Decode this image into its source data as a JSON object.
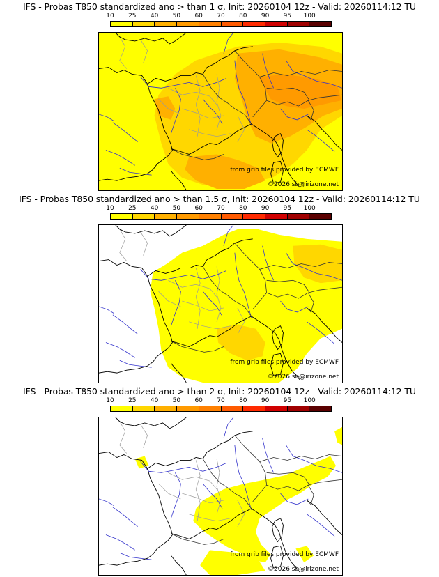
{
  "panels": [
    {
      "title": "IFS - Probas T850  standardized ano > than 1 σ, Init: 20260104 12z - Valid: 20260114:12 TU",
      "scenario": "p1"
    },
    {
      "title": "IFS - Probas T850  standardized ano > than 1.5 σ, Init: 20260104 12z - Valid: 20260114:12 TU",
      "scenario": "p15"
    },
    {
      "title": "IFS - Probas T850  standardized ano > than 2 σ, Init: 20260104 12z - Valid: 20260114:12 TU",
      "scenario": "p2"
    }
  ],
  "colorbar": {
    "labels": [
      "10",
      "25",
      "40",
      "50",
      "60",
      "70",
      "80",
      "90",
      "95",
      "100"
    ],
    "colors": [
      "#ffff00",
      "#ffd700",
      "#ffb000",
      "#ff9a00",
      "#ff8000",
      "#ff5a00",
      "#ff2a00",
      "#d00000",
      "#a00000",
      "#5a0000"
    ]
  },
  "credits": {
    "source": "from grib files provided by ECMWF",
    "copyright": "©2026 sb@irizone.net"
  },
  "colors": {
    "coast": "#000000",
    "rivers": "#3333cc",
    "borders": "#999999",
    "bg": "#ffffff",
    "c_yellow": "#ffff00",
    "c_gold": "#ffd700",
    "c_orange": "#ffb000",
    "c_dark_orange": "#ff9a00"
  }
}
